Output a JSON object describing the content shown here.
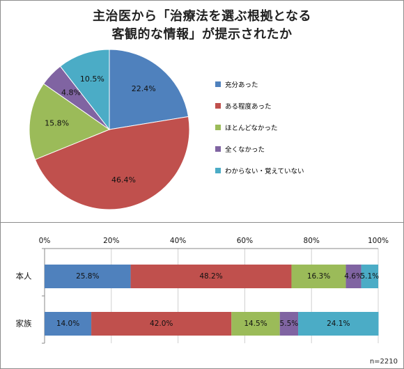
{
  "title": {
    "line1": "主治医から「治療法を選ぶ根拠となる",
    "line2": "客観的な情報」が提示されたか"
  },
  "colors": {
    "充分あった": "#4f81bd",
    "ある程度あった": "#c0504d",
    "ほとんどなかった": "#9bbb59",
    "全くなかった": "#8064a2",
    "わからない・覚えていない": "#4bacc6"
  },
  "note": "n=2210",
  "chart_data": [
    {
      "type": "pie",
      "title": "主治医から「治療法を選ぶ根拠となる客観的な情報」が提示されたか",
      "legend_position": "right",
      "categories": [
        "充分あった",
        "ある程度あった",
        "ほとんどなかった",
        "全くなかった",
        "わからない・覚えていない"
      ],
      "values": [
        22.4,
        46.4,
        15.8,
        4.8,
        10.5
      ],
      "labels": [
        "22.4%",
        "46.4%",
        "15.8%",
        "4.8%",
        "10.5%"
      ]
    },
    {
      "type": "bar",
      "orientation": "horizontal",
      "stacked": "percent",
      "categories": [
        "本人",
        "家族"
      ],
      "xlim": [
        0,
        100
      ],
      "xticks": [
        "0%",
        "20%",
        "40%",
        "60%",
        "80%",
        "100%"
      ],
      "series": [
        {
          "name": "充分あった",
          "values": [
            25.8,
            14.0
          ],
          "labels": [
            "25.8%",
            "14.0%"
          ]
        },
        {
          "name": "ある程度あった",
          "values": [
            48.2,
            42.0
          ],
          "labels": [
            "48.2%",
            "42.0%"
          ]
        },
        {
          "name": "ほとんどなかった",
          "values": [
            16.3,
            14.5
          ],
          "labels": [
            "16.3%",
            "14.5%"
          ]
        },
        {
          "name": "全くなかった",
          "values": [
            4.6,
            5.5
          ],
          "labels": [
            "4.6%",
            "5.5%"
          ]
        },
        {
          "name": "わからない・覚えていない",
          "values": [
            5.1,
            24.1
          ],
          "labels": [
            "5.1%",
            "24.1%"
          ]
        }
      ]
    }
  ]
}
